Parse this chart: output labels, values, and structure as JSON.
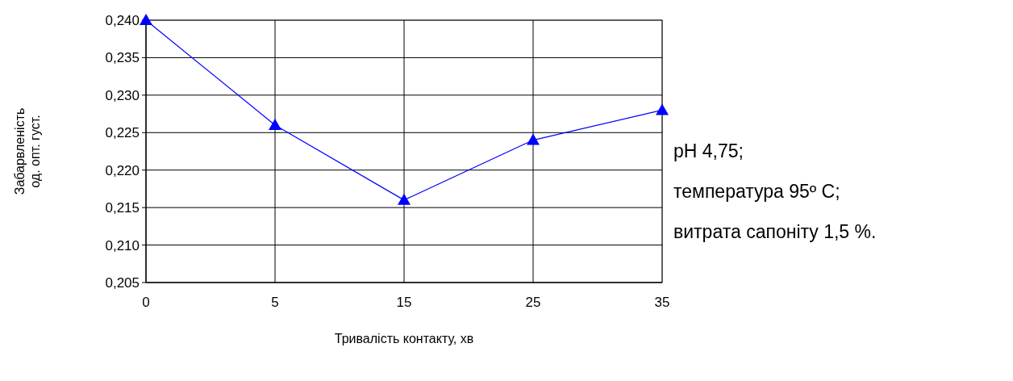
{
  "chart_data": {
    "type": "line",
    "xlabel": "Тривалість контакту, хв",
    "ylabel": "Забарвленість\nод. опт. густ.",
    "categories": [
      "0",
      "5",
      "15",
      "25",
      "35"
    ],
    "series": [
      {
        "color": "#0000ff",
        "values": [
          0.24,
          0.226,
          0.216,
          0.224,
          0.228
        ]
      }
    ],
    "ylim": [
      0.205,
      0.24
    ],
    "yticks": [
      {
        "value": 0.205,
        "label": "0,205"
      },
      {
        "value": 0.21,
        "label": "0,210"
      },
      {
        "value": 0.215,
        "label": "0,215"
      },
      {
        "value": 0.22,
        "label": "0,220"
      },
      {
        "value": 0.225,
        "label": "0,225"
      },
      {
        "value": 0.23,
        "label": "0,230"
      },
      {
        "value": 0.235,
        "label": "0,235"
      },
      {
        "value": 0.24,
        "label": "0,240"
      }
    ],
    "grid": true,
    "marker": "triangle",
    "line_style": "solid",
    "annotations": [
      "pH 4,75;",
      "температура 95º C;",
      "витрата сапоніту 1,5 %."
    ]
  }
}
